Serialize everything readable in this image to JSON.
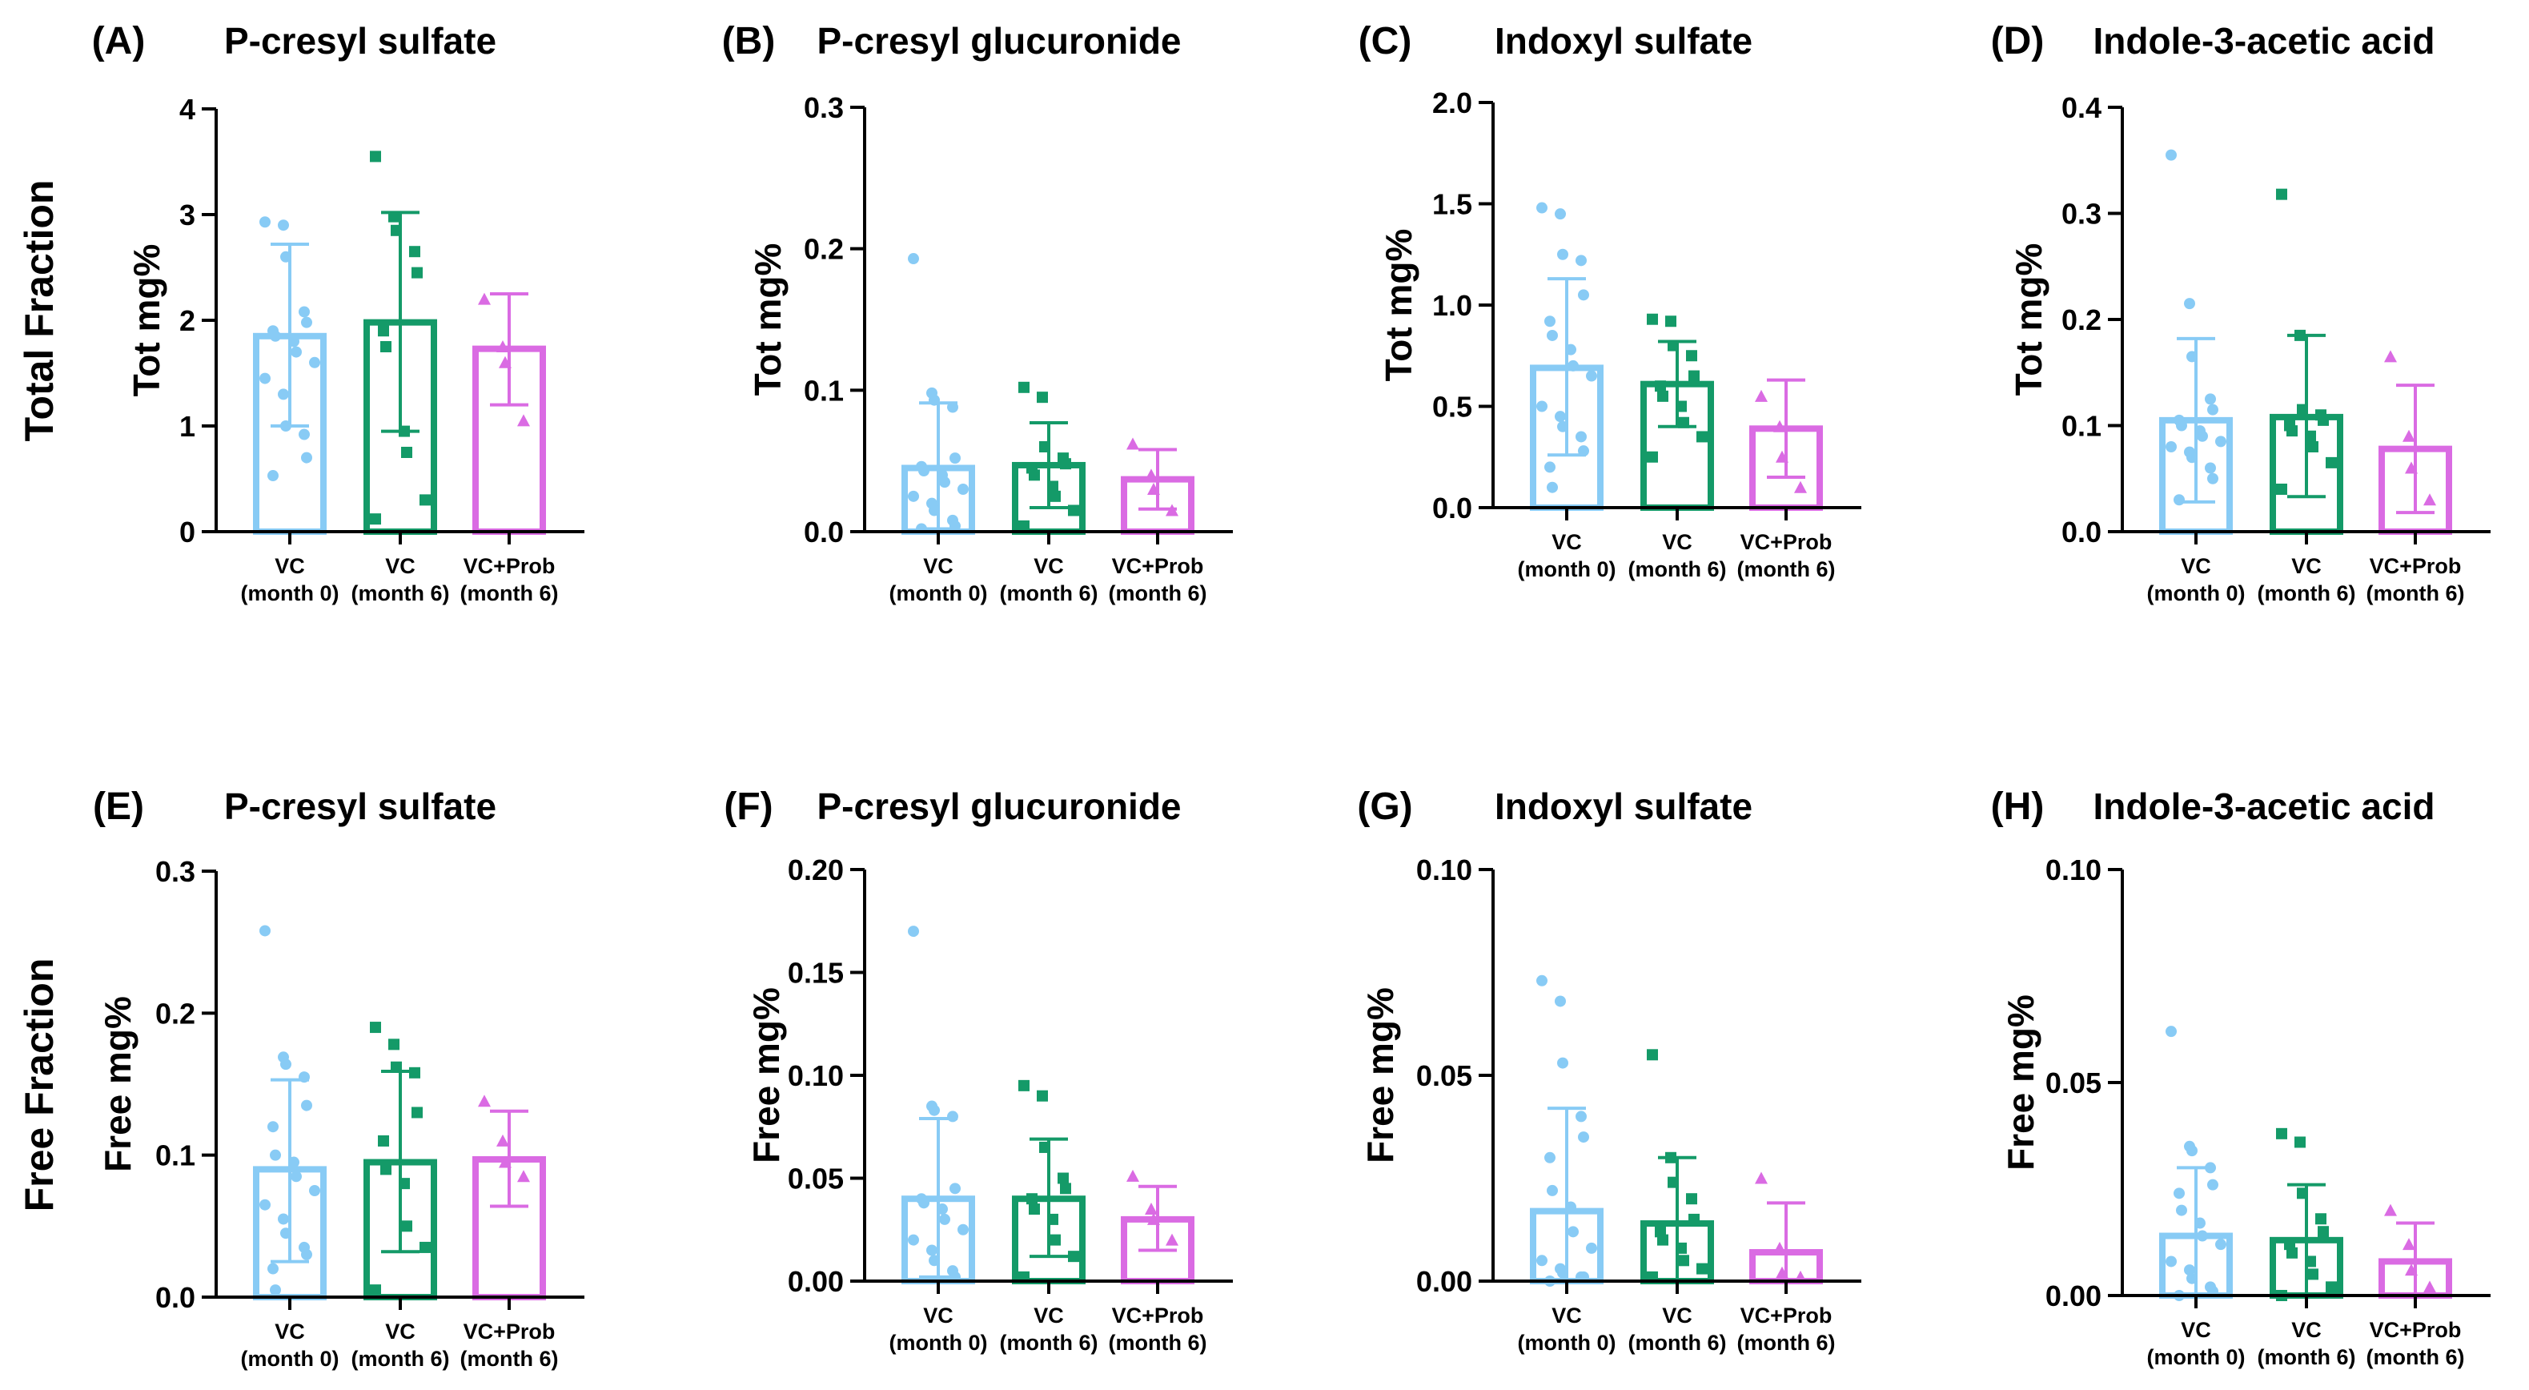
{
  "row_labels": [
    "Total Fraction",
    "Free Fraction"
  ],
  "group_labels": [
    {
      "line1": "VC",
      "line2": "(month 0)"
    },
    {
      "line1": "VC",
      "line2": "(month 6)"
    },
    {
      "line1": "VC+Prob",
      "line2": "(month 6)"
    }
  ],
  "colors": {
    "vc0": "#88CBF5",
    "vc6": "#149A68",
    "prob": "#DA6BE3"
  },
  "chart_data": [
    {
      "type": "bar",
      "panel": "(A)",
      "title": "P-cresyl sulfate",
      "ylabel": "Tot mg%",
      "ylim": [
        0,
        4
      ],
      "ticks": [
        0,
        1,
        2,
        3,
        4
      ],
      "tick_labels": [
        "0",
        "1",
        "2",
        "3",
        "4"
      ],
      "categories": [
        "VC (month 0)",
        "VC (month 6)",
        "VC+Prob (month 6)"
      ],
      "values": [
        1.85,
        1.98,
        1.73
      ],
      "err_low": [
        1.0,
        0.95,
        1.2
      ],
      "err_high": [
        2.72,
        3.02,
        2.25
      ],
      "points": [
        [
          2.93,
          2.9,
          2.6,
          2.08,
          1.98,
          1.9,
          1.85,
          1.8,
          1.7,
          1.6,
          1.45,
          1.3,
          1.0,
          0.92,
          0.7,
          0.53
        ],
        [
          3.55,
          2.98,
          2.85,
          2.65,
          2.45,
          1.9,
          1.75,
          0.95,
          0.75,
          0.3,
          0.12
        ],
        [
          2.2,
          1.75,
          1.6,
          1.05
        ]
      ]
    },
    {
      "type": "bar",
      "panel": "(B)",
      "title": "P-cresyl glucuronide",
      "ylabel": "Tot mg%",
      "ylim": [
        0,
        0.3
      ],
      "ticks": [
        0,
        0.1,
        0.2,
        0.3
      ],
      "tick_labels": [
        "0.0",
        "0.1",
        "0.2",
        "0.3"
      ],
      "categories": [
        "VC (month 0)",
        "VC (month 6)",
        "VC+Prob (month 6)"
      ],
      "values": [
        0.045,
        0.047,
        0.037
      ],
      "err_low": [
        0.002,
        0.017,
        0.016
      ],
      "err_high": [
        0.091,
        0.077,
        0.058
      ],
      "points": [
        [
          0.193,
          0.098,
          0.093,
          0.088,
          0.052,
          0.046,
          0.043,
          0.04,
          0.035,
          0.03,
          0.025,
          0.02,
          0.015,
          0.008,
          0.004,
          0.002
        ],
        [
          0.102,
          0.095,
          0.06,
          0.052,
          0.048,
          0.045,
          0.04,
          0.032,
          0.025,
          0.015,
          0.004
        ],
        [
          0.062,
          0.04,
          0.03,
          0.015
        ]
      ]
    },
    {
      "type": "bar",
      "panel": "(C)",
      "title": "Indoxyl sulfate",
      "ylabel": "Tot mg%",
      "ylim": [
        0,
        2.0
      ],
      "ticks": [
        0,
        0.5,
        1.0,
        1.5,
        2.0
      ],
      "tick_labels": [
        "0.0",
        "0.5",
        "1.0",
        "1.5",
        "2.0"
      ],
      "categories": [
        "VC (month 0)",
        "VC (month 6)",
        "VC+Prob (month 6)"
      ],
      "values": [
        0.69,
        0.61,
        0.39
      ],
      "err_low": [
        0.26,
        0.4,
        0.15
      ],
      "err_high": [
        1.13,
        0.82,
        0.63
      ],
      "points": [
        [
          1.48,
          1.45,
          1.25,
          1.22,
          1.05,
          0.92,
          0.85,
          0.78,
          0.7,
          0.65,
          0.5,
          0.45,
          0.4,
          0.35,
          0.28,
          0.2,
          0.1
        ],
        [
          0.93,
          0.92,
          0.8,
          0.75,
          0.65,
          0.6,
          0.55,
          0.5,
          0.42,
          0.35,
          0.25
        ],
        [
          0.55,
          0.4,
          0.25,
          0.1
        ]
      ]
    },
    {
      "type": "bar",
      "panel": "(D)",
      "title": "Indole-3-acetic acid",
      "ylabel": "Tot mg%",
      "ylim": [
        0,
        0.4
      ],
      "ticks": [
        0,
        0.1,
        0.2,
        0.3,
        0.4
      ],
      "tick_labels": [
        "0.0",
        "0.1",
        "0.2",
        "0.3",
        "0.4"
      ],
      "categories": [
        "VC (month 0)",
        "VC (month 6)",
        "VC+Prob (month 6)"
      ],
      "values": [
        0.105,
        0.108,
        0.078
      ],
      "err_low": [
        0.028,
        0.033,
        0.018
      ],
      "err_high": [
        0.182,
        0.185,
        0.138
      ],
      "points": [
        [
          0.355,
          0.215,
          0.165,
          0.125,
          0.115,
          0.105,
          0.1,
          0.095,
          0.09,
          0.085,
          0.08,
          0.075,
          0.07,
          0.06,
          0.05,
          0.03
        ],
        [
          0.318,
          0.185,
          0.115,
          0.11,
          0.105,
          0.1,
          0.095,
          0.09,
          0.08,
          0.065,
          0.04
        ],
        [
          0.165,
          0.09,
          0.06,
          0.03
        ]
      ]
    },
    {
      "type": "bar",
      "panel": "(E)",
      "title": "P-cresyl sulfate",
      "ylabel": "Free mg%",
      "ylim": [
        0,
        0.3
      ],
      "ticks": [
        0,
        0.1,
        0.2,
        0.3
      ],
      "tick_labels": [
        "0.0",
        "0.1",
        "0.2",
        "0.3"
      ],
      "categories": [
        "VC (month 0)",
        "VC (month 6)",
        "VC+Prob (month 6)"
      ],
      "values": [
        0.09,
        0.095,
        0.097
      ],
      "err_low": [
        0.025,
        0.032,
        0.064
      ],
      "err_high": [
        0.153,
        0.159,
        0.131
      ],
      "points": [
        [
          0.258,
          0.169,
          0.164,
          0.155,
          0.135,
          0.12,
          0.1,
          0.095,
          0.085,
          0.075,
          0.065,
          0.055,
          0.045,
          0.035,
          0.03,
          0.02,
          0.005
        ],
        [
          0.19,
          0.178,
          0.162,
          0.158,
          0.13,
          0.11,
          0.09,
          0.08,
          0.05,
          0.035,
          0.005
        ],
        [
          0.138,
          0.11,
          0.095,
          0.085
        ]
      ]
    },
    {
      "type": "bar",
      "panel": "(F)",
      "title": "P-cresyl glucuronide",
      "ylabel": "Free mg%",
      "ylim": [
        0,
        0.2
      ],
      "ticks": [
        0,
        0.05,
        0.1,
        0.15,
        0.2
      ],
      "tick_labels": [
        "0.00",
        "0.05",
        "0.10",
        "0.15",
        "0.20"
      ],
      "categories": [
        "VC (month 0)",
        "VC (month 6)",
        "VC+Prob (month 6)"
      ],
      "values": [
        0.04,
        0.04,
        0.03
      ],
      "err_low": [
        0.002,
        0.012,
        0.015
      ],
      "err_high": [
        0.079,
        0.069,
        0.046
      ],
      "points": [
        [
          0.17,
          0.085,
          0.083,
          0.08,
          0.045,
          0.04,
          0.038,
          0.035,
          0.03,
          0.025,
          0.02,
          0.015,
          0.01,
          0.005,
          0.002
        ],
        [
          0.095,
          0.09,
          0.065,
          0.05,
          0.045,
          0.04,
          0.035,
          0.03,
          0.02,
          0.012,
          0.002
        ],
        [
          0.051,
          0.035,
          0.03,
          0.02
        ]
      ]
    },
    {
      "type": "bar",
      "panel": "(G)",
      "title": "Indoxyl sulfate",
      "ylabel": "Free mg%",
      "ylim": [
        0,
        0.1
      ],
      "ticks": [
        0,
        0.05,
        0.1
      ],
      "tick_labels": [
        "0.00",
        "0.05",
        "0.10"
      ],
      "categories": [
        "VC (month 0)",
        "VC (month 6)",
        "VC+Prob (month 6)"
      ],
      "values": [
        0.017,
        0.014,
        0.007
      ],
      "err_low": [
        0.0,
        0.0,
        0.0
      ],
      "err_high": [
        0.042,
        0.03,
        0.019
      ],
      "points": [
        [
          0.073,
          0.068,
          0.053,
          0.04,
          0.035,
          0.03,
          0.022,
          0.018,
          0.012,
          0.008,
          0.005,
          0.003,
          0.002,
          0.001,
          0.001,
          0.0
        ],
        [
          0.055,
          0.03,
          0.024,
          0.02,
          0.015,
          0.012,
          0.01,
          0.008,
          0.005,
          0.003,
          0.001
        ],
        [
          0.025,
          0.008,
          0.002,
          0.001
        ]
      ]
    },
    {
      "type": "bar",
      "panel": "(H)",
      "title": "Indole-3-acetic acid",
      "ylabel": "Free mg%",
      "ylim": [
        0,
        0.1
      ],
      "ticks": [
        0,
        0.05,
        0.1
      ],
      "tick_labels": [
        "0.00",
        "0.05",
        "0.10"
      ],
      "categories": [
        "VC (month 0)",
        "VC (month 6)",
        "VC+Prob (month 6)"
      ],
      "values": [
        0.014,
        0.013,
        0.008
      ],
      "err_low": [
        0.0,
        0.0,
        0.0
      ],
      "err_high": [
        0.03,
        0.026,
        0.017
      ],
      "points": [
        [
          0.062,
          0.035,
          0.034,
          0.03,
          0.026,
          0.024,
          0.02,
          0.017,
          0.014,
          0.012,
          0.008,
          0.006,
          0.004,
          0.002,
          0.001,
          0.0
        ],
        [
          0.038,
          0.036,
          0.024,
          0.018,
          0.015,
          0.012,
          0.01,
          0.008,
          0.005,
          0.002,
          0.0
        ],
        [
          0.02,
          0.012,
          0.006,
          0.002
        ]
      ]
    }
  ]
}
